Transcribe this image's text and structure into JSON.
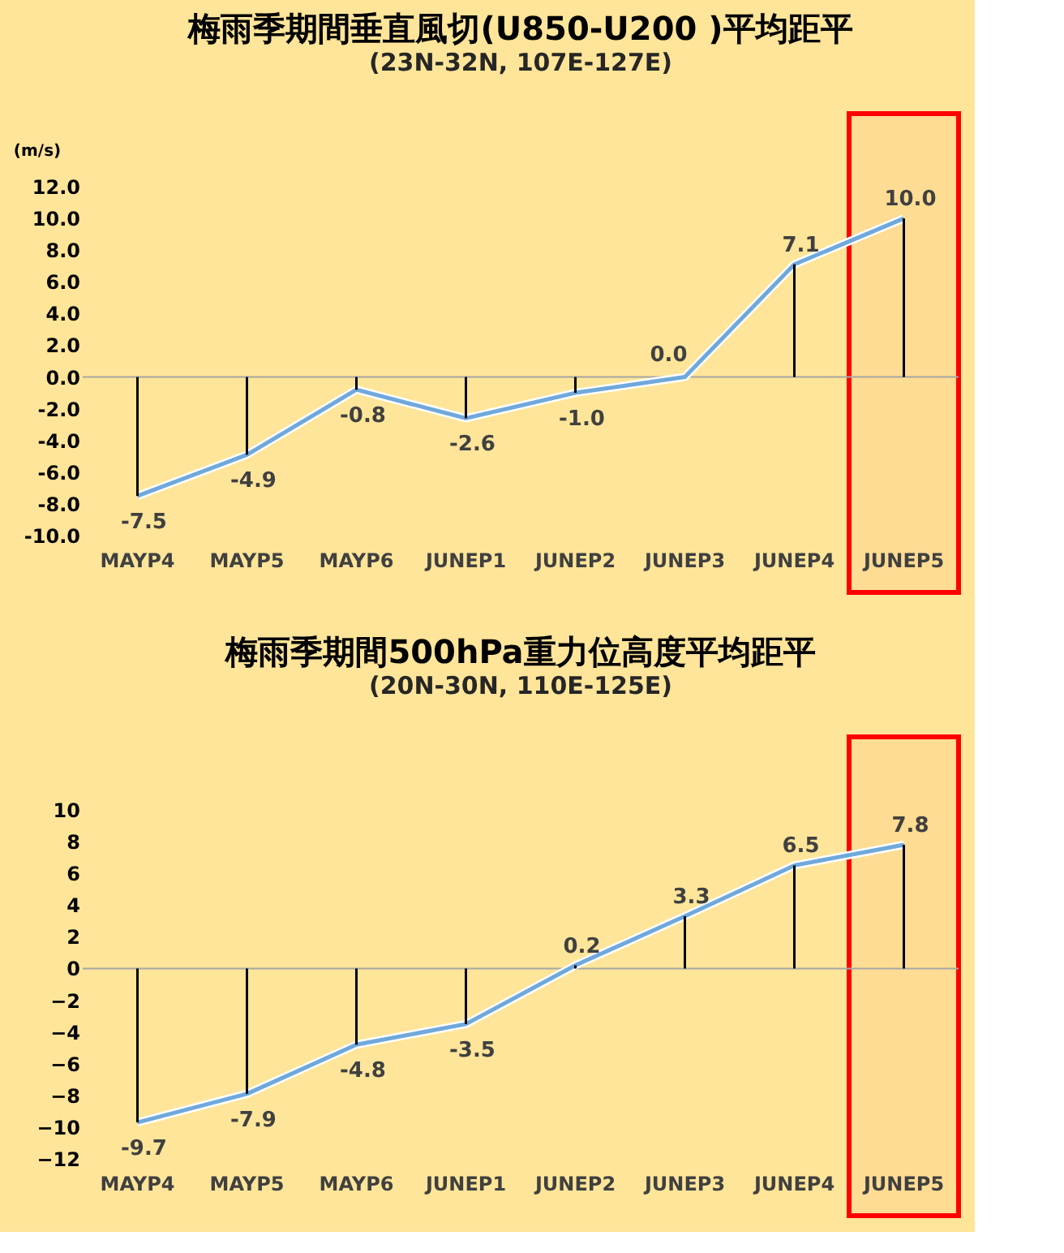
{
  "chart_data": [
    {
      "type": "line",
      "title": "梅雨季期間垂直風切(U850-U200 )平均距平",
      "subtitle": "(23N-32N, 107E-127E)",
      "ylabel": "(m/s)",
      "categories": [
        "MAYP4",
        "MAYP5",
        "MAYP6",
        "JUNEP1",
        "JUNEP2",
        "JUNEP3",
        "JUNEP4",
        "JUNEP5"
      ],
      "series": [
        {
          "type": "bar",
          "color": "#000000",
          "values": [
            -7.5,
            -4.9,
            -0.8,
            -2.6,
            -1.0,
            0.0,
            7.1,
            10.0
          ]
        },
        {
          "color": "#6fa8dc",
          "marker": "none",
          "values": [
            -7.5,
            -4.9,
            -0.8,
            -2.6,
            -1.0,
            0.0,
            7.1,
            10.0
          ],
          "value_labels": [
            "-7.5",
            "-4.9",
            "-0.8",
            "-2.6",
            "-1.0",
            "0.0",
            "7.1",
            "10.0"
          ]
        }
      ],
      "ylim": [
        -10,
        12
      ],
      "yticks": [
        {
          "value": -10,
          "label": "-10.0"
        },
        {
          "value": -8,
          "label": "-8.0"
        },
        {
          "value": -6,
          "label": "-6.0"
        },
        {
          "value": -4,
          "label": "-4.0"
        },
        {
          "value": -2,
          "label": "-2.0"
        },
        {
          "value": 0,
          "label": "0.0"
        },
        {
          "value": 2,
          "label": "2.0"
        },
        {
          "value": 4,
          "label": "4.0"
        },
        {
          "value": 6,
          "label": "6.0"
        },
        {
          "value": 8,
          "label": "8.0"
        },
        {
          "value": 10,
          "label": "10.0"
        },
        {
          "value": 12,
          "label": "12.0"
        }
      ],
      "ref_lines": [
        {
          "axis": "y",
          "value": 0,
          "color": "#a6a6a6"
        }
      ],
      "bands": [
        {
          "axis": "x",
          "from": "JUNEP5",
          "to": "JUNEP5",
          "color": "#ff0000"
        }
      ]
    },
    {
      "type": "line",
      "title": "梅雨季期間500hPa重力位高度平均距平",
      "subtitle": "(20N-30N, 110E-125E)",
      "categories": [
        "MAYP4",
        "MAYP5",
        "MAYP6",
        "JUNEP1",
        "JUNEP2",
        "JUNEP3",
        "JUNEP4",
        "JUNEP5"
      ],
      "series": [
        {
          "type": "bar",
          "color": "#000000",
          "values": [
            -9.7,
            -7.9,
            -4.8,
            -3.5,
            0.2,
            3.3,
            6.5,
            7.8
          ]
        },
        {
          "color": "#6fa8dc",
          "marker": "none",
          "values": [
            -9.7,
            -7.9,
            -4.8,
            -3.5,
            0.2,
            3.3,
            6.5,
            7.8
          ],
          "value_labels": [
            "-9.7",
            "-7.9",
            "-4.8",
            "-3.5",
            "0.2",
            "3.3",
            "6.5",
            "7.8"
          ]
        }
      ],
      "ylim": [
        -12,
        10
      ],
      "yticks": [
        -12,
        -10,
        -8,
        -6,
        -4,
        -2,
        0,
        2,
        4,
        6,
        8,
        10
      ],
      "ref_lines": [
        {
          "axis": "y",
          "value": 0,
          "color": "#a6a6a6"
        }
      ],
      "bands": [
        {
          "axis": "x",
          "from": "JUNEP5",
          "to": "JUNEP5",
          "color": "#ff0000"
        }
      ]
    }
  ]
}
